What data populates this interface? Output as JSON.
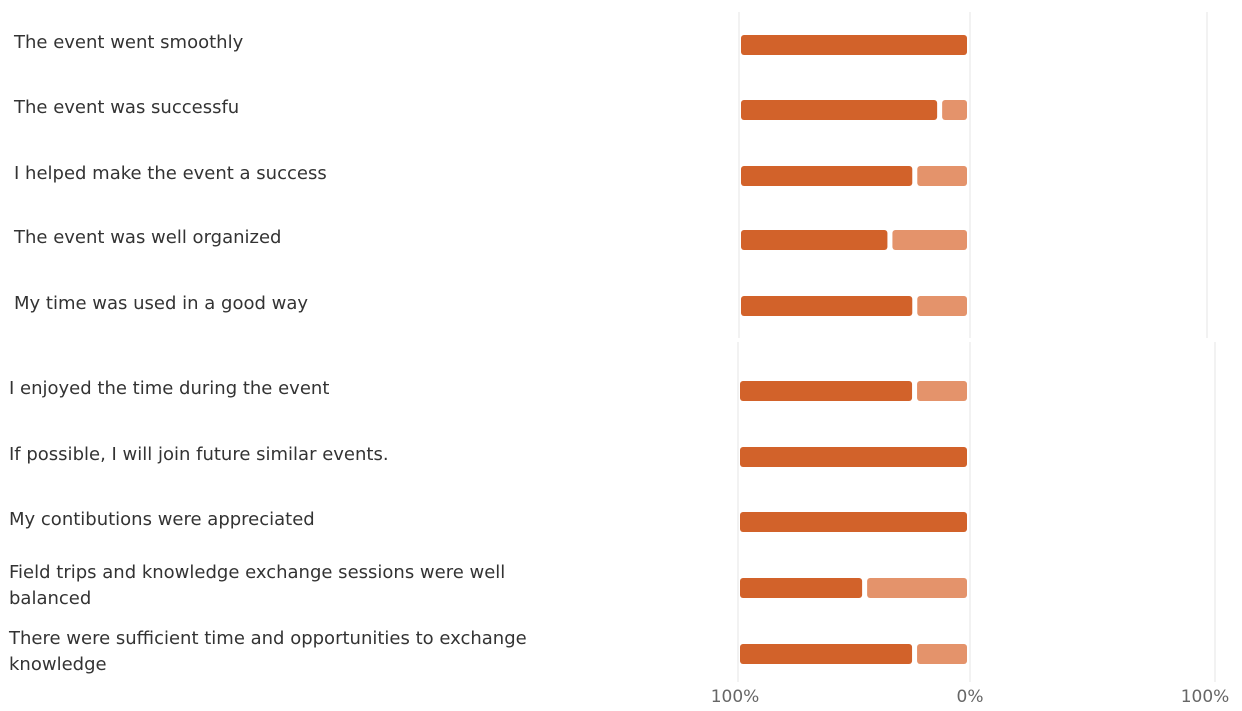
{
  "chart_data": {
    "type": "bar",
    "orientation": "horizontal",
    "stacked": true,
    "categories": [
      "The event went smoothly",
      "The event was successfu",
      "I helped make the event a success",
      "The event was well organized",
      "My time was used in a good way",
      "I enjoyed the time during the event",
      "If possible, I will join future similar events.",
      "My contibutions were appreciated",
      "Field trips and knowledge exchange sessions were well balanced",
      "There were sufficient time and opportunities to exchange knowledge"
    ],
    "series": [
      {
        "values": [
          100,
          89,
          78,
          67,
          78,
          78,
          100,
          100,
          56,
          78
        ]
      },
      {
        "values": [
          0,
          11,
          22,
          33,
          22,
          22,
          0,
          0,
          44,
          22
        ]
      }
    ],
    "xticks": [
      "100%",
      "0%",
      "100%"
    ],
    "xlim": [
      -100,
      100
    ],
    "colors": [
      "#D2622A",
      "#E4936B"
    ],
    "grid": true
  }
}
